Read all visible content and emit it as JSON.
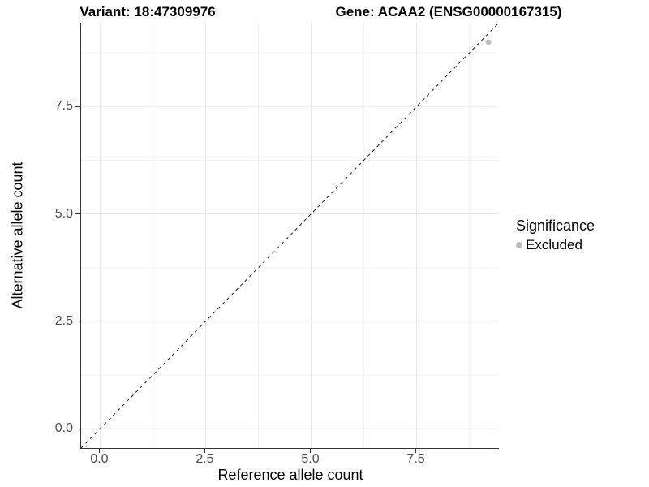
{
  "header": {
    "variant_title": "Variant: 18:47309976",
    "gene_title": "Gene: ACAA2 (ENSG00000167315)"
  },
  "chart_data": {
    "type": "scatter",
    "titles": [
      "Variant: 18:47309976",
      "Gene: ACAA2 (ENSG00000167315)"
    ],
    "xlabel": "Reference allele count",
    "ylabel": "Alternative allele count",
    "xlim": [
      -0.45,
      9.45
    ],
    "ylim": [
      -0.45,
      9.45
    ],
    "x_ticks": {
      "values": [
        0,
        2.5,
        5.0,
        7.5
      ],
      "labels": [
        "0.0",
        "2.5",
        "5.0",
        "7.5"
      ]
    },
    "y_ticks": {
      "values": [
        0,
        2.5,
        5.0,
        7.5
      ],
      "labels": [
        "0.0",
        "2.5",
        "5.0",
        "7.5"
      ]
    },
    "minor_tick_values": [
      1.25,
      3.75,
      6.25,
      8.75
    ],
    "grid": {
      "major_color": "#e8e8e8",
      "minor_color": "#f3f3f3",
      "background": "#ffffff"
    },
    "reference_line": {
      "kind": "identity y=x",
      "style": "dashed",
      "color": "#1a1a1a",
      "dash": [
        4,
        4
      ]
    },
    "series": [
      {
        "name": "Excluded",
        "color": "#bebebe",
        "marker": "circle",
        "marker_radius": 3.5,
        "points": [
          [
            9.2,
            9.0
          ]
        ]
      }
    ],
    "legend": {
      "title": "Significance",
      "position": "right",
      "entries": [
        {
          "label": "Excluded",
          "color": "#bebebe"
        }
      ]
    },
    "axis_color": "#333333",
    "tick_label_color": "#4d4d4d"
  }
}
